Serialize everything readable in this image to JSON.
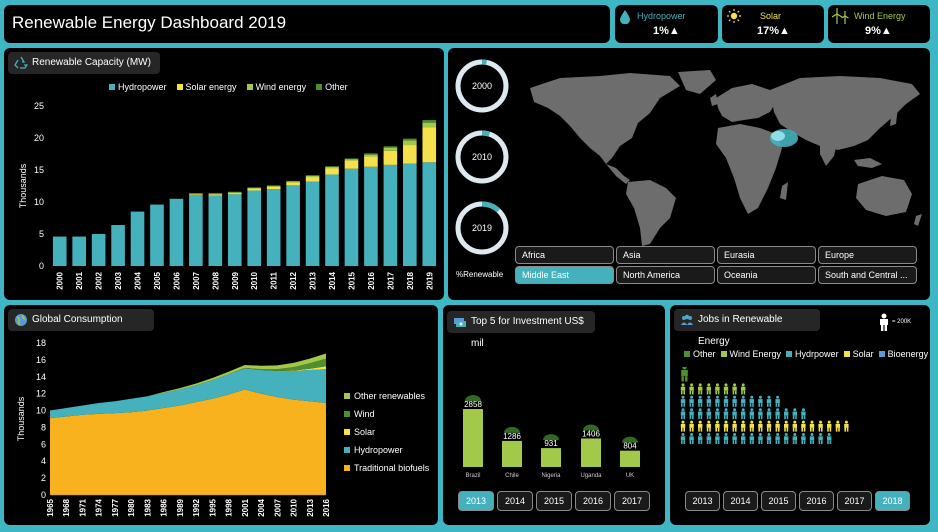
{
  "header": {
    "title": "Renewable Energy Dashboard 2019"
  },
  "kpis": [
    {
      "label": "Hydropower",
      "value": "1%▲",
      "color": "#45b1bd",
      "icon": "droplet-icon"
    },
    {
      "label": "Solar",
      "value": "17%▲",
      "color": "#f5e14b",
      "icon": "sun-icon"
    },
    {
      "label": "Wind Energy",
      "value": "9%▲",
      "color": "#a3c94a",
      "icon": "wind-turbine-icon"
    }
  ],
  "colors": {
    "hydro": "#45b1bd",
    "solar": "#f5e14b",
    "wind": "#a3c94a",
    "other": "#4e8f2e",
    "biofuel": "#f8b21d",
    "bio": "#5b9bd5"
  },
  "capacity": {
    "title": "Renewable Capacity (MW)",
    "legend": [
      "Hydropower",
      "Solar energy",
      "Wind energy",
      "Other"
    ]
  },
  "donuts": {
    "items": [
      {
        "year": "2000",
        "fraction": 0.03
      },
      {
        "year": "2010",
        "fraction": 0.05
      },
      {
        "year": "2019",
        "fraction": 0.12
      }
    ],
    "caption": "%Renewable"
  },
  "regions": [
    "Africa",
    "Asia",
    "Eurasia",
    "Europe",
    "Middle East",
    "North America",
    "Oceania",
    "South and Central ..."
  ],
  "region_selected": "Middle East",
  "consumption": {
    "title": "Global Consumption",
    "legend": [
      "Other renewables",
      "Wind",
      "Solar",
      "Hydropower",
      "Traditional biofuels"
    ]
  },
  "investment": {
    "title": "Top 5 for Investment US$ mil",
    "years": [
      "2013",
      "2014",
      "2015",
      "2016",
      "2017"
    ],
    "selected": "2013"
  },
  "jobs": {
    "title": "Jobs in Renewable Energy",
    "unit_label": "= 200K",
    "legend": [
      "Other",
      "Wind Energy",
      "Hydrpower",
      "Solar",
      "Bioenergy"
    ],
    "years": [
      "2013",
      "2014",
      "2015",
      "2016",
      "2017",
      "2018"
    ],
    "selected": "2018",
    "row_counts": [
      0.5,
      8,
      12,
      15,
      20,
      18
    ]
  },
  "chart_data": [
    {
      "type": "bar",
      "title": "Renewable Capacity (MW)",
      "ylabel": "Thousands",
      "ylim": [
        0,
        25
      ],
      "yticks": [
        0,
        5,
        10,
        15,
        20,
        25
      ],
      "categories": [
        "2000",
        "2001",
        "2002",
        "2003",
        "2004",
        "2005",
        "2006",
        "2007",
        "2008",
        "2009",
        "2010",
        "2011",
        "2012",
        "2013",
        "2014",
        "2015",
        "2016",
        "2017",
        "2018",
        "2019"
      ],
      "series": [
        {
          "name": "Hydropower",
          "values": [
            4.6,
            4.6,
            5.0,
            6.4,
            8.5,
            9.6,
            10.5,
            11.1,
            11.0,
            11.2,
            11.8,
            12.0,
            12.6,
            13.2,
            14.3,
            15.2,
            15.5,
            15.8,
            16.0,
            16.2
          ]
        },
        {
          "name": "Solar energy",
          "values": [
            0,
            0,
            0,
            0,
            0,
            0,
            0,
            0.1,
            0.2,
            0.2,
            0.3,
            0.4,
            0.5,
            0.7,
            1.0,
            1.3,
            1.6,
            2.2,
            2.9,
            5.5
          ]
        },
        {
          "name": "Wind energy",
          "values": [
            0,
            0,
            0,
            0,
            0,
            0,
            0,
            0.1,
            0.1,
            0.1,
            0.1,
            0.1,
            0.1,
            0.2,
            0.2,
            0.2,
            0.3,
            0.5,
            0.7,
            0.7
          ]
        },
        {
          "name": "Other",
          "values": [
            0,
            0,
            0,
            0,
            0,
            0,
            0,
            0.1,
            0.1,
            0.1,
            0.1,
            0.1,
            0.1,
            0.1,
            0.1,
            0.1,
            0.2,
            0.2,
            0.3,
            0.4
          ]
        }
      ]
    },
    {
      "type": "area",
      "title": "Global Consumption",
      "ylabel": "Thousands",
      "ylim": [
        0,
        18
      ],
      "yticks": [
        0,
        2,
        4,
        6,
        8,
        10,
        12,
        14,
        16,
        18
      ],
      "x": [
        "1965",
        "1968",
        "1971",
        "1974",
        "1977",
        "1980",
        "1983",
        "1986",
        "1989",
        "1992",
        "1995",
        "1998",
        "2001",
        "2004",
        "2007",
        "2010",
        "2013",
        "2016"
      ],
      "series": [
        {
          "name": "Traditional biofuels",
          "values": [
            9.1,
            9.3,
            9.5,
            9.6,
            9.7,
            9.8,
            10.0,
            10.3,
            10.6,
            11.0,
            11.4,
            11.9,
            12.5,
            12.0,
            11.6,
            11.3,
            11.1,
            10.9
          ]
        },
        {
          "name": "Hydropower",
          "values": [
            0.9,
            1.0,
            1.1,
            1.3,
            1.4,
            1.6,
            1.7,
            1.8,
            1.9,
            2.0,
            2.2,
            2.4,
            2.5,
            2.8,
            3.1,
            3.4,
            3.7,
            4.0
          ]
        },
        {
          "name": "Solar",
          "values": [
            0,
            0,
            0,
            0,
            0,
            0,
            0,
            0,
            0,
            0,
            0,
            0,
            0,
            0,
            0,
            0.05,
            0.15,
            0.35
          ]
        },
        {
          "name": "Wind",
          "values": [
            0,
            0,
            0,
            0,
            0,
            0,
            0,
            0,
            0,
            0,
            0,
            0,
            0.05,
            0.1,
            0.2,
            0.4,
            0.65,
            0.9
          ]
        },
        {
          "name": "Other renewables",
          "values": [
            0,
            0,
            0,
            0,
            0,
            0,
            0,
            0.1,
            0.15,
            0.2,
            0.25,
            0.3,
            0.35,
            0.4,
            0.45,
            0.5,
            0.55,
            0.6
          ]
        }
      ]
    },
    {
      "type": "bar",
      "title": "Top 5 for Investment US$ mil",
      "categories": [
        "Brazil",
        "Chile",
        "Nigeria",
        "Uganda",
        "UK"
      ],
      "values": [
        2858,
        1286,
        931,
        1406,
        804
      ]
    }
  ]
}
